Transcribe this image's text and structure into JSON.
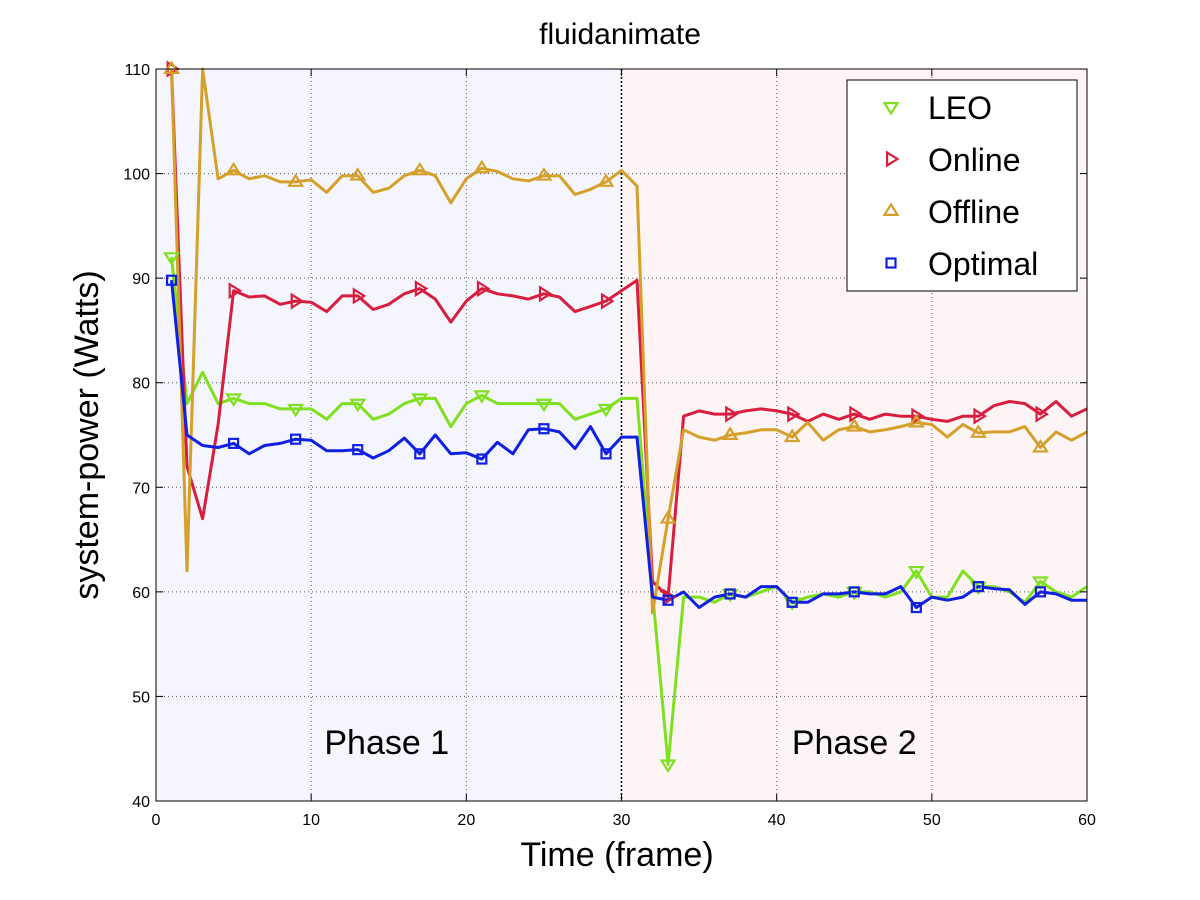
{
  "chart_data": {
    "type": "line",
    "title": "fluidanimate",
    "xlabel": "Time (frame)",
    "ylabel": "system-power (Watts)",
    "xlim": [
      0,
      60
    ],
    "ylim": [
      40,
      110
    ],
    "xticks": [
      0,
      10,
      20,
      30,
      40,
      50,
      60
    ],
    "yticks": [
      40,
      50,
      60,
      70,
      80,
      90,
      100,
      110
    ],
    "grid": true,
    "legend_position": "top-right",
    "phase_boundary": 30,
    "regions": [
      {
        "label": "Phase 1",
        "from": 0,
        "to": 30,
        "color": "#f5f5fd"
      },
      {
        "label": "Phase 2",
        "from": 30,
        "to": 60,
        "color": "#fdf5f5"
      }
    ],
    "x": [
      1,
      2,
      3,
      4,
      5,
      6,
      7,
      8,
      9,
      10,
      11,
      12,
      13,
      14,
      15,
      16,
      17,
      18,
      19,
      20,
      21,
      22,
      23,
      24,
      25,
      26,
      27,
      28,
      29,
      30,
      31,
      32,
      33,
      34,
      35,
      36,
      37,
      38,
      39,
      40,
      41,
      42,
      43,
      44,
      45,
      46,
      47,
      48,
      49,
      50,
      51,
      52,
      53,
      54,
      55,
      56,
      57,
      58,
      59,
      60
    ],
    "series": [
      {
        "name": "LEO",
        "color": "#7ee01e",
        "marker": "triangle-down",
        "marker_every": 4,
        "marker_start": 0,
        "values": [
          92,
          78,
          81,
          78,
          78.5,
          78,
          78,
          77.5,
          77.5,
          77.5,
          76.5,
          78,
          78,
          76.5,
          77,
          78,
          78.5,
          78.5,
          75.8,
          78,
          78.8,
          78,
          78,
          78,
          78,
          78,
          76.5,
          77,
          77.5,
          78.5,
          78.5,
          60,
          43.5,
          59.5,
          59.5,
          59,
          59.8,
          59.5,
          60,
          60.5,
          59,
          59.5,
          59.8,
          59.5,
          60,
          60,
          59.5,
          60,
          62,
          59.5,
          59.5,
          62,
          60.5,
          60.5,
          60,
          59,
          61,
          60,
          59.5,
          60.5
        ]
      },
      {
        "name": "Online",
        "color": "#d81e3e",
        "marker": "triangle-right",
        "marker_every": 4,
        "marker_start": 0,
        "values": [
          110,
          72,
          67,
          76,
          88.8,
          88.2,
          88.3,
          87.5,
          87.8,
          87.7,
          86.8,
          88.3,
          88.3,
          87,
          87.5,
          88.5,
          89,
          88,
          85.8,
          87.8,
          89,
          88.5,
          88.3,
          88,
          88.5,
          88.2,
          86.8,
          87.3,
          87.8,
          88.8,
          89.8,
          61,
          59.5,
          76.8,
          77.3,
          77,
          77,
          77.3,
          77.5,
          77.3,
          77,
          76.3,
          77,
          76.5,
          77,
          76.5,
          77,
          76.8,
          76.8,
          76.5,
          76.3,
          76.8,
          76.8,
          77.8,
          78.2,
          78,
          77,
          78.2,
          76.8,
          77.5
        ]
      },
      {
        "name": "Offline",
        "color": "#d4a02a",
        "marker": "triangle-up",
        "marker_every": 4,
        "marker_start": 0,
        "values": [
          110,
          62,
          110,
          99.5,
          100.3,
          99.5,
          99.8,
          99.2,
          99.2,
          99.4,
          98.2,
          99.8,
          99.8,
          98.2,
          98.6,
          99.8,
          100.3,
          99.8,
          97.2,
          99.5,
          100.5,
          100.2,
          99.5,
          99.3,
          99.8,
          99.8,
          98,
          98.5,
          99.2,
          100.3,
          98.8,
          58,
          67,
          75.5,
          74.8,
          74.5,
          75,
          75.2,
          75.5,
          75.5,
          74.8,
          76.2,
          74.5,
          75.5,
          75.8,
          75.3,
          75.5,
          75.8,
          76.2,
          76,
          74.8,
          76,
          75.2,
          75.3,
          75.3,
          75.8,
          73.8,
          75.3,
          74.5,
          75.3
        ]
      },
      {
        "name": "Optimal",
        "color": "#1020e0",
        "marker": "square",
        "marker_every": 4,
        "marker_start": 0,
        "values": [
          89.8,
          75,
          74,
          73.8,
          74.2,
          73.2,
          74,
          74.2,
          74.6,
          74.5,
          73.5,
          73.5,
          73.6,
          72.8,
          73.5,
          74.7,
          73.2,
          75,
          73.2,
          73.3,
          72.7,
          74.3,
          73.2,
          75.5,
          75.6,
          75.3,
          73.7,
          75.8,
          73.2,
          74.8,
          74.8,
          59.5,
          59.2,
          60,
          58.5,
          59.5,
          59.8,
          59.5,
          60.5,
          60.5,
          59,
          59,
          59.8,
          59.8,
          60,
          59.8,
          59.8,
          60.5,
          58.5,
          59.5,
          59.2,
          59.5,
          60.5,
          60.3,
          60.2,
          58.8,
          60,
          59.8,
          59.2,
          59.2
        ]
      }
    ]
  }
}
